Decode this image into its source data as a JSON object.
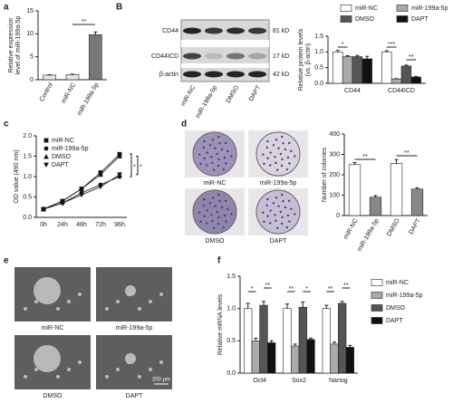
{
  "figure": {
    "panel_labels": [
      "a",
      "B",
      "c",
      "d",
      "e",
      "f"
    ],
    "blot": {
      "rows": [
        "CD44",
        "CD44ICD",
        "β-actin"
      ],
      "sizes": [
        "81 kD",
        "17 kD",
        "42 kD"
      ],
      "lanes": [
        "miR-NC",
        "miR-199a-5p",
        "DMSO",
        "DAPT"
      ]
    },
    "colony_labels": [
      "miR-NC",
      "miR-199a-5p",
      "DMSO",
      "DAPT"
    ],
    "micro_labels": [
      "miR-NC",
      "miR-199a-5p",
      "DMSO",
      "DAPT"
    ],
    "scale_bar": "200 μm"
  },
  "chart_data": [
    {
      "type": "bar",
      "y_label": [
        "Relative expression",
        "level of miR-199a-5p"
      ],
      "categories": [
        "Control",
        "miR-NC",
        "miR-199a-5p"
      ],
      "values": [
        1,
        1.1,
        9.8
      ],
      "errors": [
        0.1,
        0.1,
        0.6
      ],
      "colors": [
        "#e6e6e6",
        "#e6e6e6",
        "#777777"
      ],
      "ylim": [
        0,
        15
      ],
      "yticks": [
        0,
        5,
        10,
        15
      ],
      "annotations": [
        "**"
      ]
    },
    {
      "type": "bar",
      "y_label": [
        "Relative protein levels",
        "(vs. β-actin)"
      ],
      "categories": [
        "CD44",
        "CD44ICD"
      ],
      "series": [
        {
          "name": "miR-NC",
          "color": "#ffffff",
          "values": [
            1.0,
            1.0
          ],
          "errors": [
            0.05,
            0.04
          ]
        },
        {
          "name": "miR-199a-5p",
          "color": "#aaaaaa",
          "values": [
            0.85,
            0.14
          ],
          "errors": [
            0.03,
            0.01
          ]
        },
        {
          "name": "DMSO",
          "color": "#555555",
          "values": [
            0.85,
            0.55
          ],
          "errors": [
            0.04,
            0.03
          ]
        },
        {
          "name": "DAPT",
          "color": "#111111",
          "values": [
            0.78,
            0.2
          ],
          "errors": [
            0.08,
            0.02
          ]
        }
      ],
      "ylim": [
        0,
        1.5
      ],
      "yticks": [
        {
          "value": 0,
          "label": "0.0"
        },
        0.5,
        {
          "value": 1,
          "label": "1.0"
        },
        1.5
      ],
      "annotations": [
        "*",
        "***",
        "**"
      ]
    },
    {
      "type": "line",
      "y_label": [
        "OD value (490 nm)"
      ],
      "categories": [
        "0h",
        "24h",
        "48h",
        "72h",
        "96h"
      ],
      "series": [
        {
          "name": "miR-NC",
          "color": "#111111",
          "marker": "square",
          "values": [
            0.2,
            0.4,
            0.7,
            1.1,
            1.55
          ]
        },
        {
          "name": "miR-199a-5p",
          "color": "#111111",
          "marker": "circle",
          "values": [
            0.2,
            0.35,
            0.6,
            0.8,
            1.0
          ]
        },
        {
          "name": "DMSO",
          "color": "#111111",
          "marker": "triangle",
          "values": [
            0.2,
            0.4,
            0.7,
            1.05,
            1.5
          ]
        },
        {
          "name": "DAPT",
          "color": "#111111",
          "marker": "triangle-down",
          "values": [
            0.2,
            0.35,
            0.55,
            0.75,
            1.05
          ]
        }
      ],
      "ylim": [
        0,
        2
      ],
      "yticks": [
        {
          "value": 0,
          "label": "0.0"
        },
        0.5,
        {
          "value": 1,
          "label": "1.0"
        },
        1.5,
        {
          "value": 2,
          "label": "2.0"
        }
      ],
      "annotations": [
        "*",
        "*"
      ]
    },
    {
      "type": "bar",
      "y_label": [
        "Number of colonies"
      ],
      "categories": [
        "miR-NC",
        "miR-199a-5p",
        "DMSO",
        "DAPT"
      ],
      "values": [
        250,
        90,
        255,
        130
      ],
      "errors": [
        10,
        8,
        20,
        6
      ],
      "colors": [
        "#ffffff",
        "#888888",
        "#ffffff",
        "#888888"
      ],
      "ylim": [
        0,
        400
      ],
      "yticks": [
        0,
        100,
        200,
        300,
        400
      ],
      "annotations": [
        "**",
        "**"
      ]
    },
    {
      "type": "bar",
      "y_label": [
        "Relative mRNA levels"
      ],
      "categories": [
        "Oct4",
        "Sox2",
        "Nanog"
      ],
      "series": [
        {
          "name": "miR-NC",
          "color": "#ffffff",
          "values": [
            1.0,
            1.0,
            1.0
          ],
          "errors": [
            0.08,
            0.07,
            0.05
          ]
        },
        {
          "name": "miR-199a-5p",
          "color": "#aaaaaa",
          "values": [
            0.5,
            0.42,
            0.45
          ],
          "errors": [
            0.04,
            0.03,
            0.03
          ]
        },
        {
          "name": "DMSO",
          "color": "#555555",
          "values": [
            1.05,
            1.02,
            1.08
          ],
          "errors": [
            0.06,
            0.08,
            0.03
          ]
        },
        {
          "name": "DAPT",
          "color": "#111111",
          "values": [
            0.47,
            0.52,
            0.4
          ],
          "errors": [
            0.03,
            0.02,
            0.03
          ]
        }
      ],
      "ylim": [
        0,
        1.5
      ],
      "yticks": [
        {
          "value": 0,
          "label": "0.0"
        },
        0.5,
        {
          "value": 1,
          "label": "1.0"
        },
        1.5
      ],
      "annotations": [
        "*",
        "**",
        "**",
        "*",
        "**",
        "**"
      ]
    }
  ]
}
